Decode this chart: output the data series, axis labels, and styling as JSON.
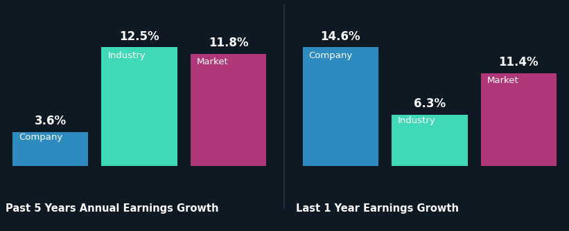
{
  "background_color": "#0f1923",
  "chart1": {
    "title": "Past 5 Years Annual Earnings Growth",
    "bars": [
      {
        "label": "Company",
        "value": 3.6,
        "color": "#2e8bc0"
      },
      {
        "label": "Industry",
        "value": 12.5,
        "color": "#40d9b8"
      },
      {
        "label": "Market",
        "value": 11.8,
        "color": "#b03878"
      }
    ]
  },
  "chart2": {
    "title": "Last 1 Year Earnings Growth",
    "bars": [
      {
        "label": "Company",
        "value": 14.6,
        "color": "#2e8bc0"
      },
      {
        "label": "Industry",
        "value": 6.3,
        "color": "#40d9b8"
      },
      {
        "label": "Market",
        "value": 11.4,
        "color": "#b03878"
      }
    ]
  },
  "text_color": "#ffffff",
  "label_fontsize": 9.5,
  "value_fontsize": 12,
  "title_fontsize": 10.5,
  "bar_width": 0.85,
  "separator_color": "#2a3040"
}
